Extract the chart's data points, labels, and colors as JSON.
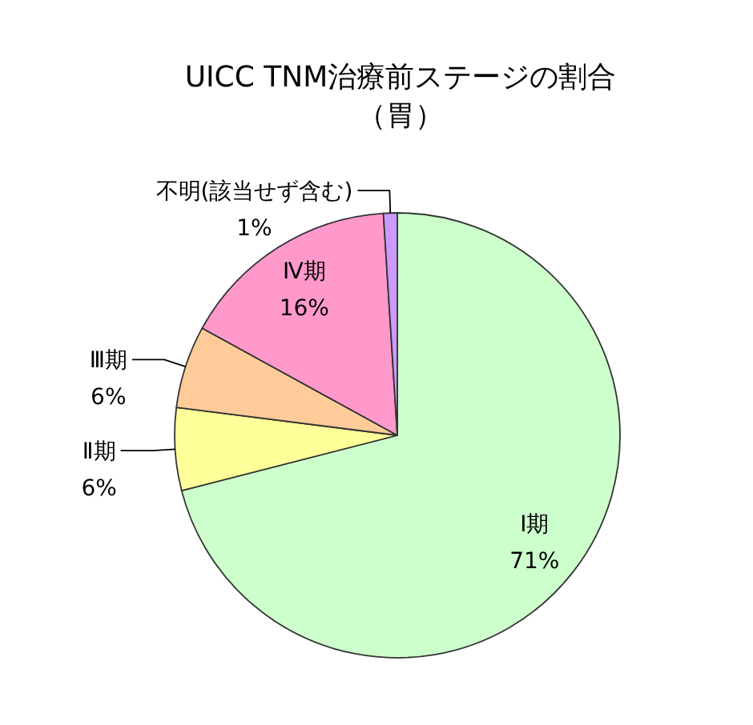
{
  "chart_data": {
    "type": "pie",
    "title": "UICC TNM治療前ステージの割合",
    "subtitle": "（胃）",
    "categories": [
      "Ⅰ期",
      "Ⅱ期",
      "Ⅲ期",
      "Ⅳ期",
      "不明(該当せず含む)"
    ],
    "values": [
      71,
      6,
      6,
      16,
      1
    ],
    "colors": [
      "#ccffcc",
      "#ffff99",
      "#ffcc99",
      "#ff99cc",
      "#cc99ff"
    ],
    "value_labels": [
      "71%",
      "6%",
      "6%",
      "16%",
      "1%"
    ]
  }
}
